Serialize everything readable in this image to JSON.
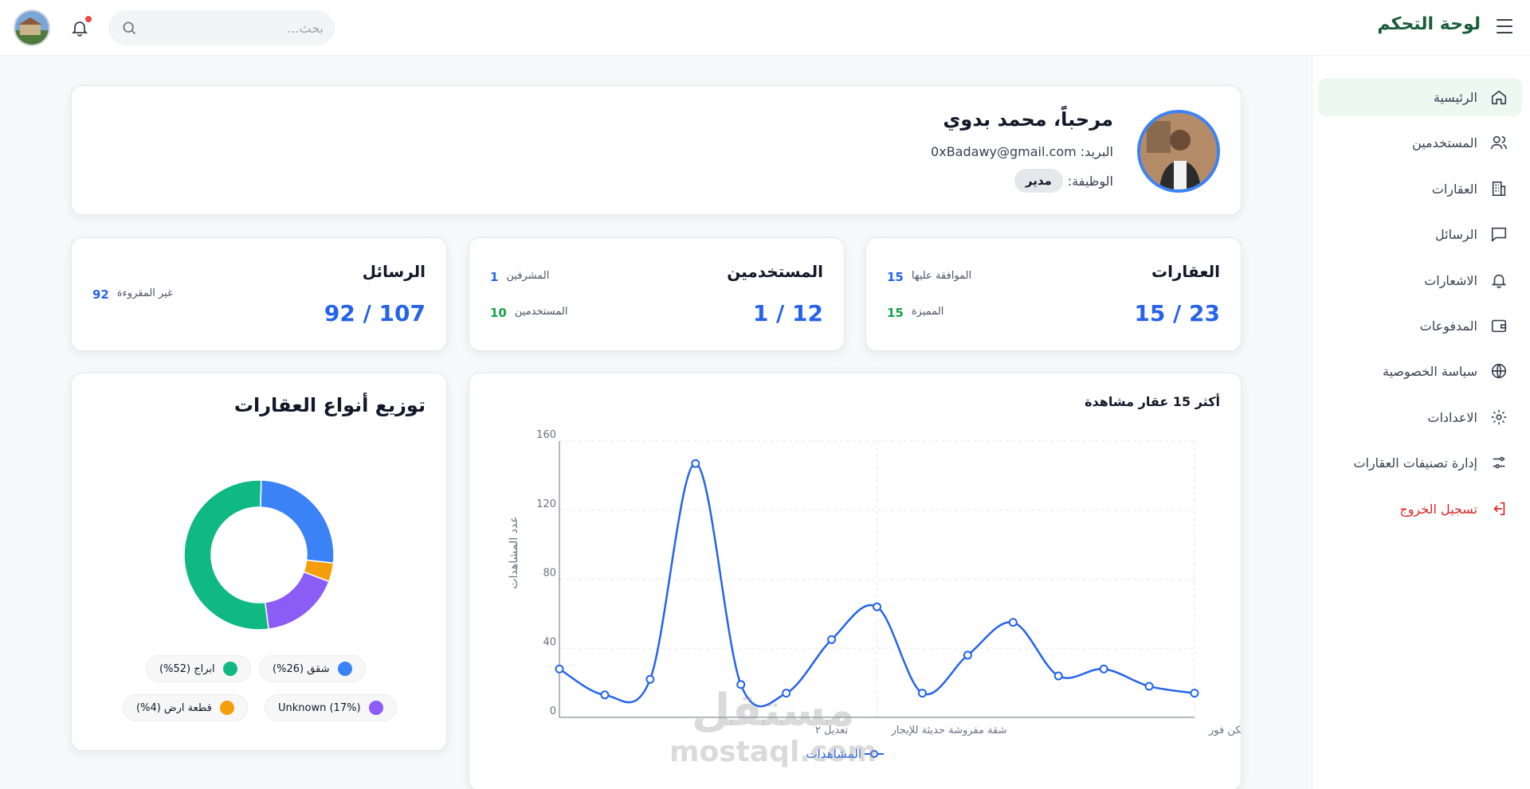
{
  "header": {
    "title": "لوحة التحكم",
    "search_placeholder": "بحث..."
  },
  "sidebar": {
    "items": [
      {
        "label": "الرئيسية",
        "icon": "home-icon",
        "active": true
      },
      {
        "label": "المستخدمين",
        "icon": "users-icon"
      },
      {
        "label": "العقارات",
        "icon": "building-icon"
      },
      {
        "label": "الرسائل",
        "icon": "message-icon"
      },
      {
        "label": "الاشعارات",
        "icon": "bell-icon"
      },
      {
        "label": "المدفوعات",
        "icon": "wallet-icon"
      },
      {
        "label": "سياسة الخصوصية",
        "icon": "globe-icon"
      },
      {
        "label": "الاعدادات",
        "icon": "gear-icon"
      },
      {
        "label": "إدارة تصنيفات العقارات",
        "icon": "sliders-icon"
      },
      {
        "label": "تسجيل الخروج",
        "icon": "logout-icon"
      }
    ]
  },
  "profile": {
    "greeting": "مرحباً، محمد بدوي",
    "email_label": "البريد:",
    "email": "0xBadawy@gmail.com",
    "role_label": "الوظيفة:",
    "role": "مدير"
  },
  "stats": {
    "properties": {
      "title": "العقارات",
      "main": "15 / 23",
      "sub1_label": "الموافقة عليها",
      "sub1_value": "15",
      "sub2_label": "المميزة",
      "sub2_value": "15"
    },
    "users": {
      "title": "المستخدمين",
      "main": "1 / 12",
      "sub1_label": "المشرفين",
      "sub1_value": "1",
      "sub2_label": "المستخدمين",
      "sub2_value": "10"
    },
    "messages": {
      "title": "الرسائل",
      "main": "92 / 107",
      "sub1_label": "غير المقروءة",
      "sub1_value": "92"
    }
  },
  "line_chart": {
    "title": "أكثر 15 عقار مشاهدة",
    "ylabel": "عدد المشاهدات",
    "legend": "المشاهدات",
    "x_tick_labels": [
      "للبيع فيلا جاهزة للسكن فور",
      "شقة مفروشة حديثة للإيجار",
      "تعديل ٢"
    ],
    "color": "#2563eb"
  },
  "pie_chart": {
    "title": "توزيع أنواع العقارات",
    "legend": [
      {
        "label": "شقق (26%)",
        "color": "#3b82f6"
      },
      {
        "label": "ابراج (52%)",
        "color": "#10b981"
      },
      {
        "label": "Unknown (17%)",
        "color": "#8b5cf6"
      },
      {
        "label": "قطعة ارض (4%)",
        "color": "#f59e0b"
      }
    ]
  },
  "watermark": {
    "arabic": "مستقل",
    "latin": "mostaql.com"
  },
  "chart_data": [
    {
      "type": "line",
      "title": "أكثر 15 عقار مشاهدة",
      "ylabel": "عدد المشاهدات",
      "xlabel": "",
      "ylim": [
        0,
        160
      ],
      "yticks": [
        0,
        40,
        80,
        120,
        160
      ],
      "grid": true,
      "legend_position": "bottom",
      "series": [
        {
          "name": "المشاهدات",
          "values": [
            28,
            13,
            22,
            147,
            19,
            14,
            45,
            64,
            14,
            36,
            55,
            24,
            28,
            18,
            14
          ]
        }
      ]
    },
    {
      "type": "pie",
      "title": "توزيع أنواع العقارات",
      "categories": [
        "شقق",
        "قطعة ارض",
        "Unknown",
        "ابراج"
      ],
      "values": [
        26,
        4,
        17,
        52
      ],
      "colors": [
        "#3b82f6",
        "#f59e0b",
        "#8b5cf6",
        "#10b981"
      ]
    }
  ]
}
